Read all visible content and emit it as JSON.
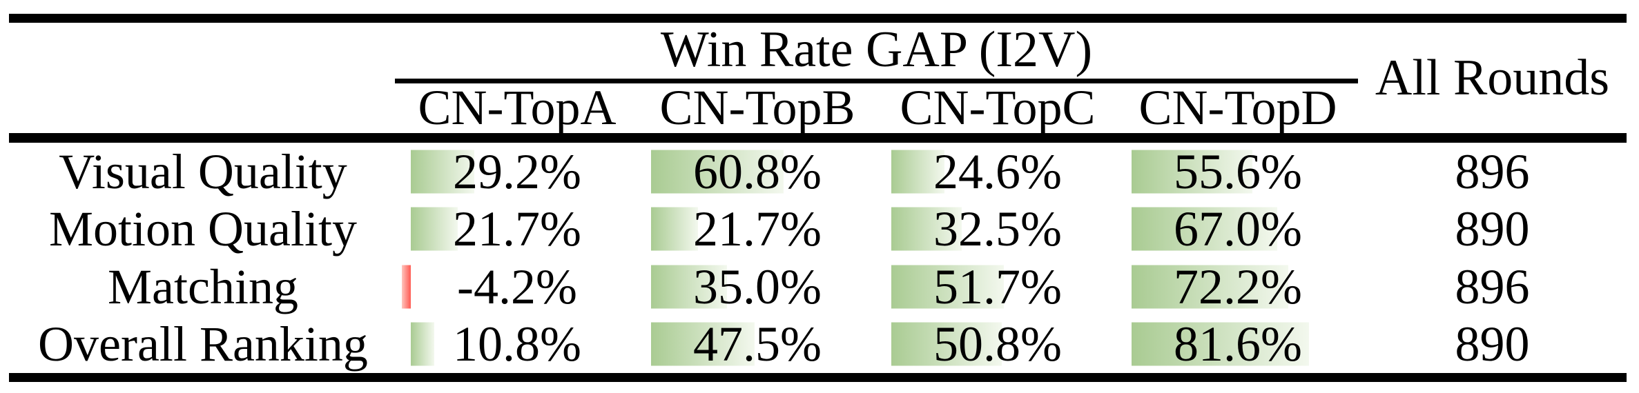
{
  "table": {
    "group_header": "Win Rate GAP (I2V)",
    "all_rounds_header": "All Rounds",
    "columns": [
      "CN-TopA",
      "CN-TopB",
      "CN-TopC",
      "CN-TopD"
    ],
    "rows": [
      {
        "label": "Visual Quality",
        "values": [
          29.2,
          60.8,
          24.6,
          55.6
        ],
        "all_rounds": "896"
      },
      {
        "label": "Motion Quality",
        "values": [
          21.7,
          21.7,
          32.5,
          67.0
        ],
        "all_rounds": "890"
      },
      {
        "label": "Matching",
        "values": [
          -4.2,
          35.0,
          51.7,
          72.2
        ],
        "all_rounds": "896"
      },
      {
        "label": "Overall Ranking",
        "values": [
          10.8,
          47.5,
          50.8,
          81.6
        ],
        "all_rounds": "890"
      }
    ],
    "value_suffix": "%",
    "colors": {
      "positive_bar": "#a9cb92",
      "positive_bar_fade": "#f3f8ee",
      "negative_bar": "#ff5a52",
      "negative_bar_fade": "#ffc4bd",
      "rule": "#000000",
      "text": "#000000"
    }
  },
  "chart_data": {
    "type": "table",
    "title": "Win Rate GAP (I2V)",
    "categories": [
      "Visual Quality",
      "Motion Quality",
      "Matching",
      "Overall Ranking"
    ],
    "series": [
      {
        "name": "CN-TopA",
        "values": [
          29.2,
          21.7,
          -4.2,
          10.8
        ]
      },
      {
        "name": "CN-TopB",
        "values": [
          60.8,
          21.7,
          35.0,
          47.5
        ]
      },
      {
        "name": "CN-TopC",
        "values": [
          24.6,
          32.5,
          51.7,
          50.8
        ]
      },
      {
        "name": "CN-TopD",
        "values": [
          55.6,
          67.0,
          72.2,
          81.6
        ]
      }
    ],
    "extra_column": {
      "name": "All Rounds",
      "values": [
        896,
        890,
        896,
        890
      ]
    },
    "value_unit": "%",
    "bar_style": "in-cell green gradient data bars, red for negative"
  }
}
